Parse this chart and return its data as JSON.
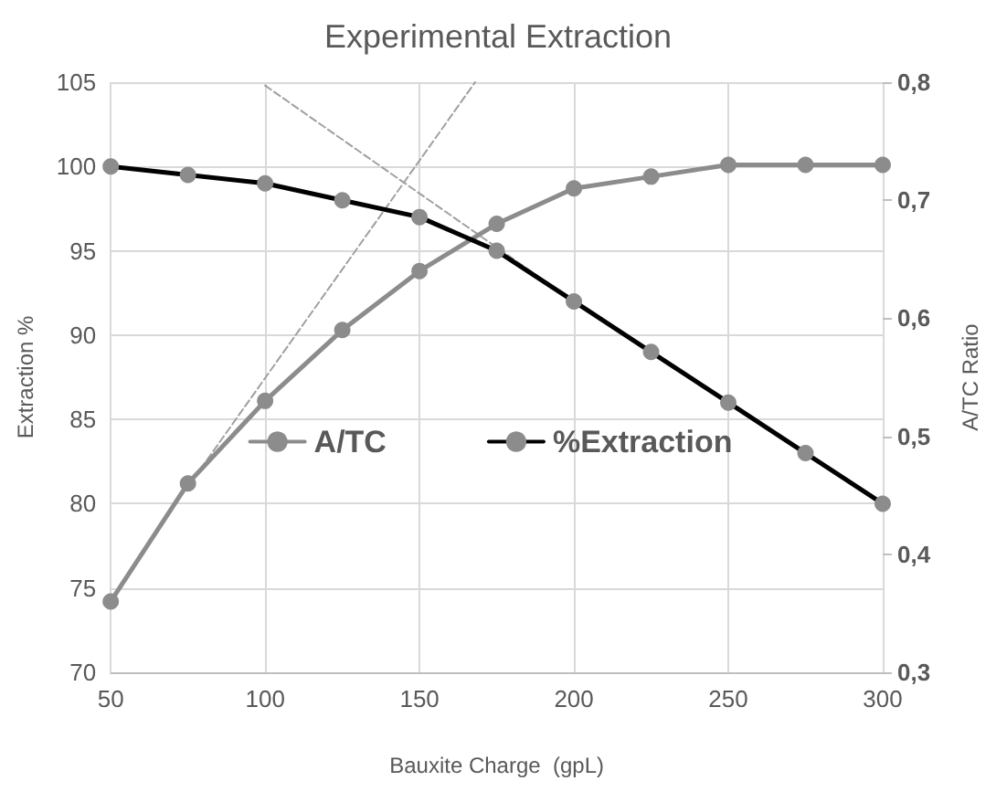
{
  "chart_data": {
    "type": "line",
    "title": "Experimental Extraction",
    "xlabel": "Bauxite Charge  (gpL)",
    "ylabel": "Extraction %",
    "y2label": "A/TC Ratio",
    "x": [
      50,
      75,
      100,
      125,
      150,
      175,
      200,
      225,
      250,
      275,
      300
    ],
    "series": [
      {
        "name": "A/TC",
        "color": "#8c8c8c",
        "axis": "y2",
        "values": [
          0.36,
          0.46,
          0.53,
          0.59,
          0.64,
          0.68,
          0.71,
          0.72,
          0.73,
          0.73,
          0.73
        ]
      },
      {
        "name": "%Extraction",
        "color": "#000000",
        "values": [
          100,
          99.5,
          99,
          98,
          97,
          95,
          92,
          89,
          86,
          83,
          80
        ]
      },
      {
        "color": "#a0a0a0",
        "x": [
          75,
          168
        ],
        "values": [
          81,
          105
        ],
        "line_style": "dashed",
        "marker": "none"
      },
      {
        "color": "#a0a0a0",
        "x": [
          100,
          200
        ],
        "values": [
          104.8,
          92
        ],
        "line_style": "dashed",
        "marker": "none"
      }
    ],
    "xlim": [
      50,
      300
    ],
    "xticks": [
      50,
      100,
      150,
      200,
      250,
      300
    ],
    "ylim": [
      70,
      105
    ],
    "yticks": [
      70,
      75,
      80,
      85,
      90,
      95,
      100,
      105
    ],
    "y2lim": [
      0.3,
      0.8
    ],
    "y2ticks": [
      {
        "value": 0.3,
        "label": "0,3"
      },
      {
        "value": 0.4,
        "label": "0,4"
      },
      {
        "value": 0.5,
        "label": "0,5"
      },
      {
        "value": 0.6,
        "label": "0,6"
      },
      {
        "value": 0.7,
        "label": "0,7"
      },
      {
        "value": 0.8,
        "label": "0,8"
      }
    ],
    "grid": true,
    "legend": "left",
    "marker": "circle",
    "line_style": "solid"
  }
}
